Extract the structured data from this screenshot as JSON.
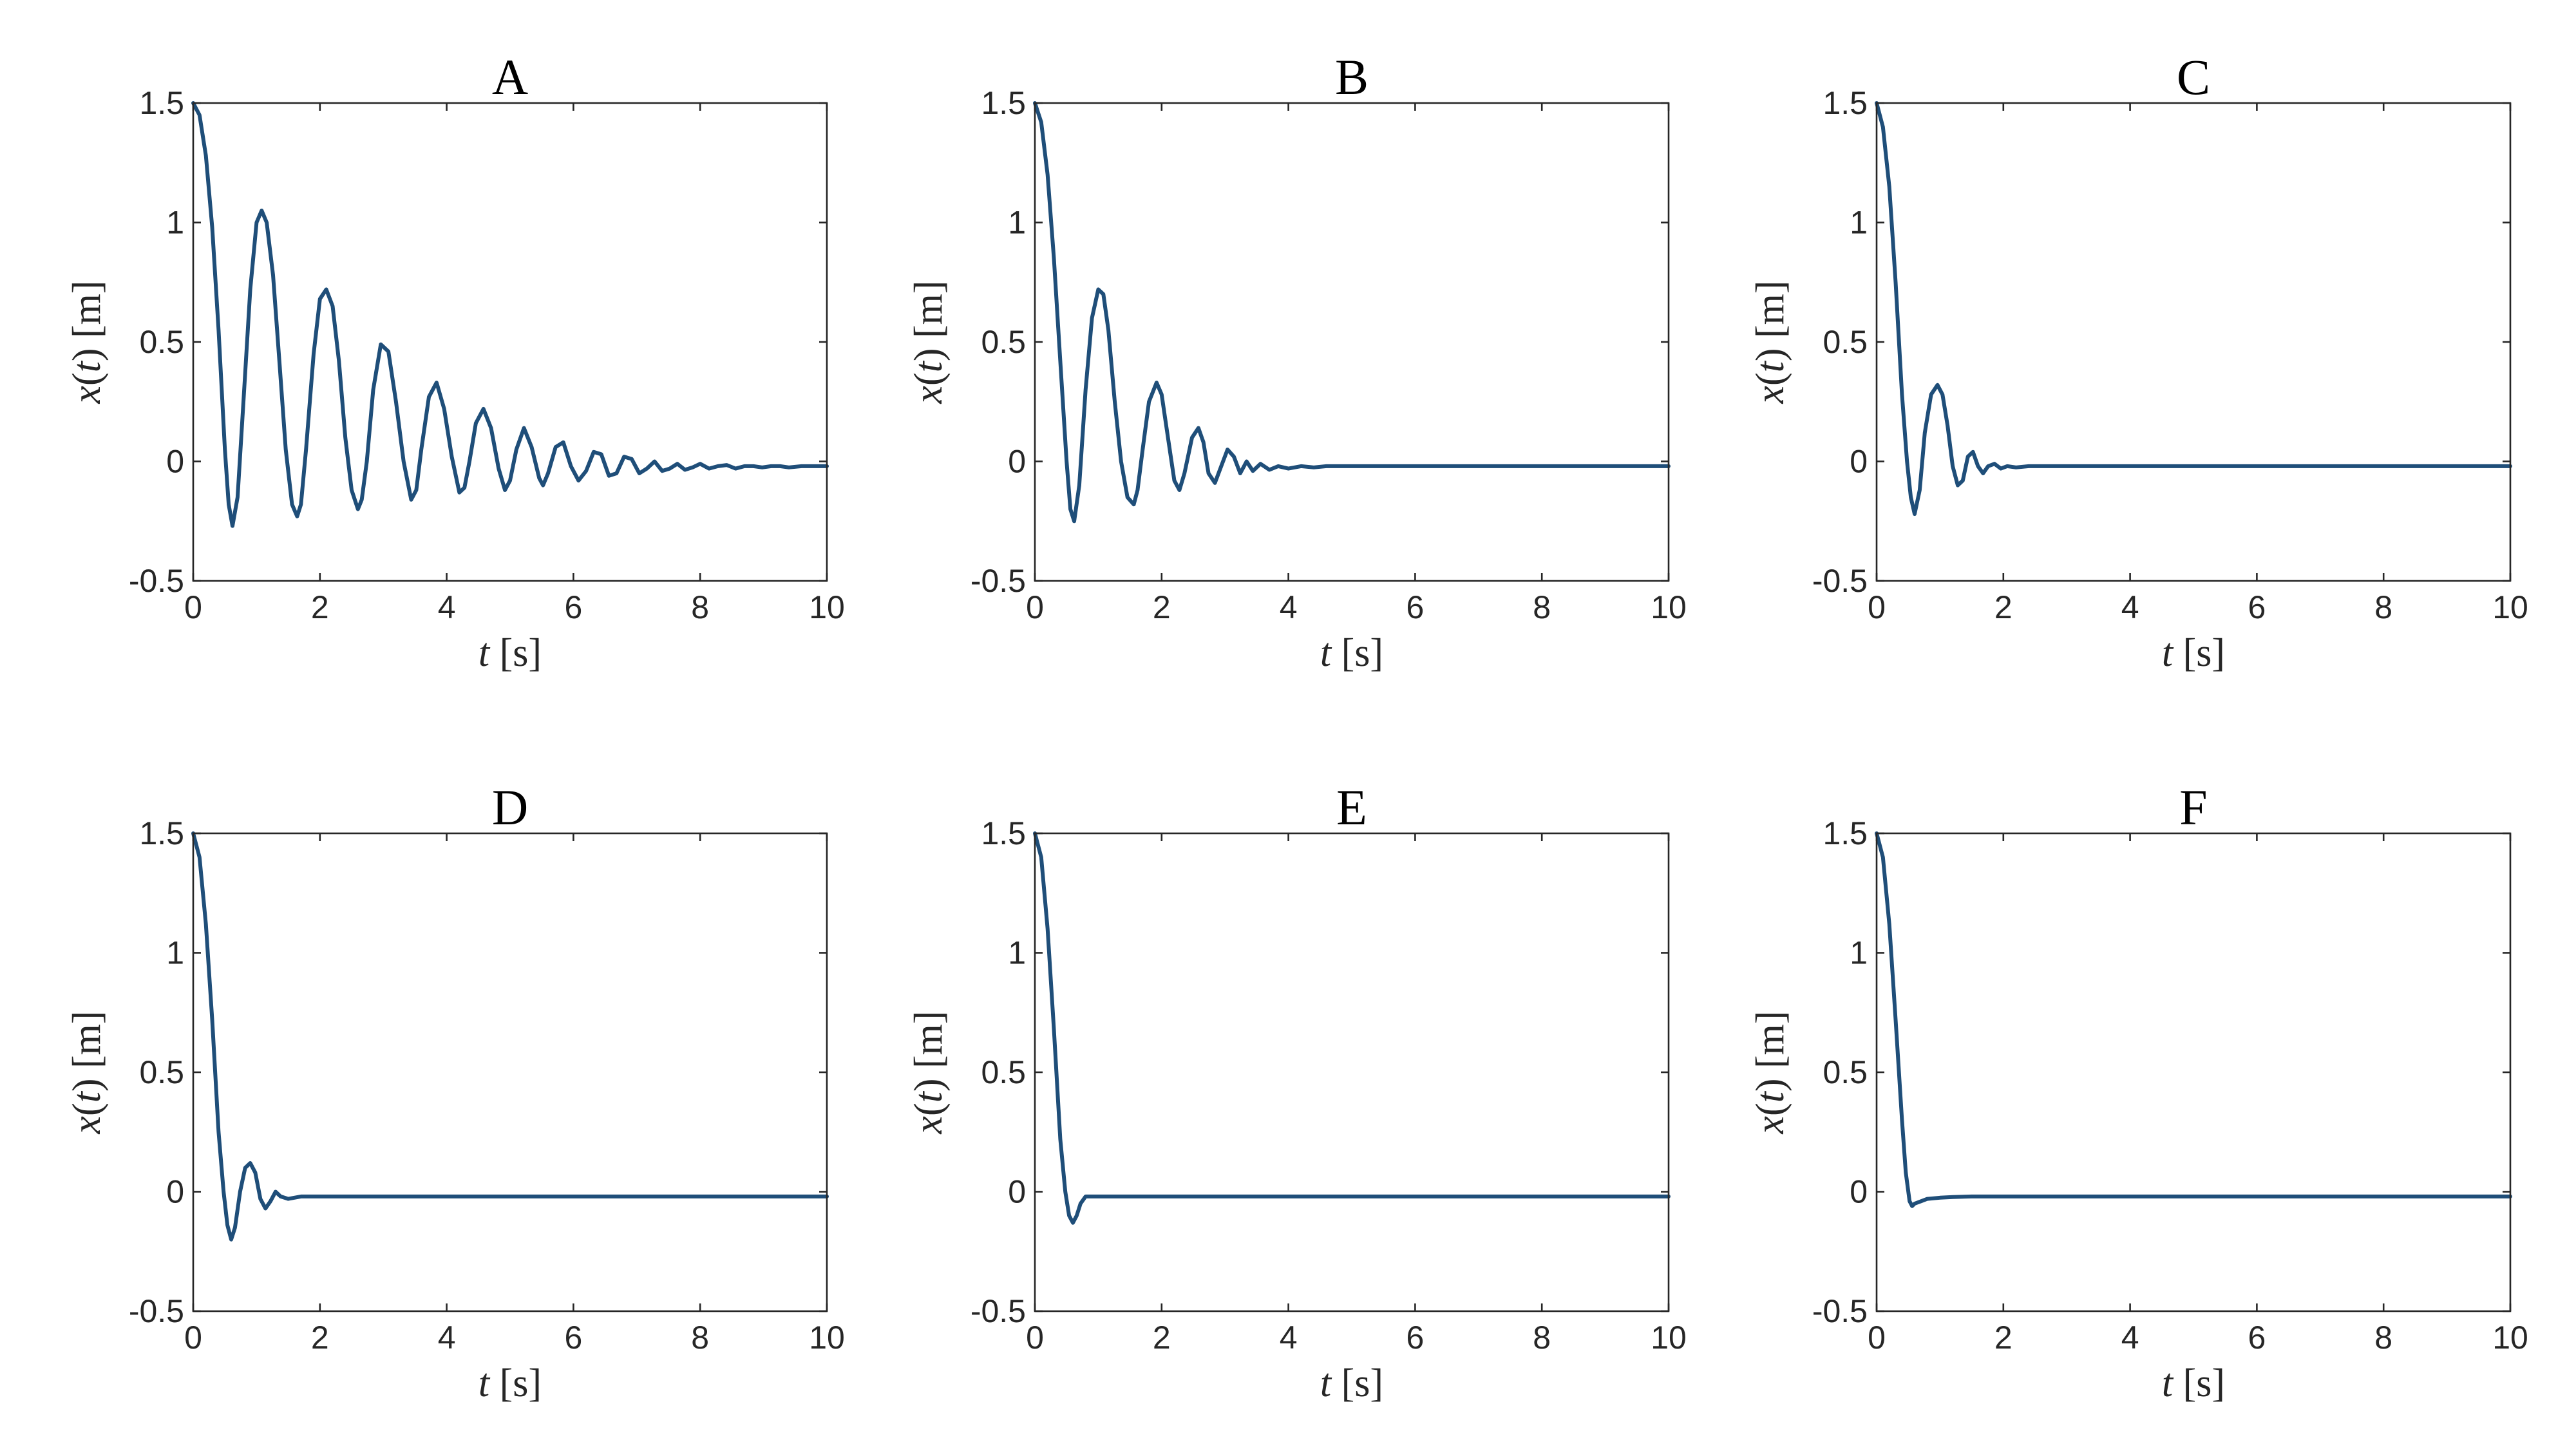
{
  "chart_data": [
    {
      "type": "line",
      "title": "A",
      "xlabel_var": "t",
      "xlabel_unit": "[s]",
      "ylabel_var": "x(t)",
      "ylabel_unit": "[m]",
      "xlim": [
        0,
        10
      ],
      "ylim": [
        -0.5,
        1.5
      ],
      "xticks": [
        "0",
        "2",
        "4",
        "6",
        "8",
        "10"
      ],
      "yticks": [
        "-0.5",
        "0",
        "0.5",
        "1",
        "1.5"
      ],
      "grid": false,
      "series": [
        {
          "color": "#1f4e79",
          "x": [
            0,
            0.1,
            0.2,
            0.3,
            0.4,
            0.5,
            0.56,
            0.62,
            0.7,
            0.8,
            0.9,
            1.0,
            1.08,
            1.16,
            1.26,
            1.36,
            1.46,
            1.56,
            1.64,
            1.7,
            1.78,
            1.9,
            2.0,
            2.1,
            2.2,
            2.3,
            2.4,
            2.5,
            2.6,
            2.66,
            2.74,
            2.84,
            2.96,
            3.08,
            3.2,
            3.32,
            3.44,
            3.52,
            3.6,
            3.72,
            3.84,
            3.96,
            4.08,
            4.2,
            4.28,
            4.36,
            4.46,
            4.58,
            4.7,
            4.82,
            4.92,
            5.0,
            5.1,
            5.22,
            5.34,
            5.46,
            5.52,
            5.6,
            5.72,
            5.84,
            5.96,
            6.08,
            6.2,
            6.32,
            6.44,
            6.56,
            6.68,
            6.8,
            6.92,
            7.04,
            7.16,
            7.28,
            7.4,
            7.52,
            7.64,
            7.76,
            7.88,
            8.0,
            8.14,
            8.28,
            8.42,
            8.56,
            8.7,
            8.84,
            8.98,
            9.12,
            9.26,
            9.4,
            9.6,
            9.8,
            10.0
          ],
          "y": [
            1.5,
            1.45,
            1.28,
            0.98,
            0.55,
            0.05,
            -0.18,
            -0.27,
            -0.15,
            0.28,
            0.72,
            1.0,
            1.05,
            1.0,
            0.78,
            0.42,
            0.05,
            -0.18,
            -0.23,
            -0.18,
            0.05,
            0.45,
            0.68,
            0.72,
            0.65,
            0.42,
            0.1,
            -0.12,
            -0.2,
            -0.16,
            0.0,
            0.3,
            0.49,
            0.46,
            0.25,
            0.0,
            -0.16,
            -0.12,
            0.05,
            0.27,
            0.33,
            0.22,
            0.02,
            -0.13,
            -0.11,
            0.0,
            0.16,
            0.22,
            0.14,
            -0.03,
            -0.12,
            -0.08,
            0.05,
            0.14,
            0.06,
            -0.07,
            -0.1,
            -0.05,
            0.06,
            0.08,
            -0.02,
            -0.08,
            -0.04,
            0.04,
            0.03,
            -0.06,
            -0.05,
            0.02,
            0.01,
            -0.05,
            -0.03,
            0.0,
            -0.04,
            -0.03,
            -0.01,
            -0.035,
            -0.025,
            -0.01,
            -0.03,
            -0.02,
            -0.015,
            -0.03,
            -0.02,
            -0.02,
            -0.025,
            -0.02,
            -0.02,
            -0.025,
            -0.02,
            -0.02,
            -0.02
          ]
        }
      ]
    },
    {
      "type": "line",
      "title": "B",
      "xlabel_var": "t",
      "xlabel_unit": "[s]",
      "ylabel_var": "x(t)",
      "ylabel_unit": "[m]",
      "xlim": [
        0,
        10
      ],
      "ylim": [
        -0.5,
        1.5
      ],
      "xticks": [
        "0",
        "2",
        "4",
        "6",
        "8",
        "10"
      ],
      "yticks": [
        "-0.5",
        "0",
        "0.5",
        "1",
        "1.5"
      ],
      "grid": false,
      "series": [
        {
          "color": "#1f4e79",
          "x": [
            0,
            0.1,
            0.2,
            0.3,
            0.4,
            0.5,
            0.56,
            0.62,
            0.7,
            0.8,
            0.9,
            1.0,
            1.08,
            1.16,
            1.26,
            1.36,
            1.46,
            1.56,
            1.62,
            1.7,
            1.8,
            1.92,
            2.0,
            2.1,
            2.2,
            2.28,
            2.36,
            2.48,
            2.58,
            2.66,
            2.74,
            2.84,
            2.94,
            3.04,
            3.14,
            3.24,
            3.34,
            3.44,
            3.56,
            3.7,
            3.84,
            4.0,
            4.2,
            4.4,
            4.6,
            5.0,
            6.0,
            7.0,
            8.0,
            9.0,
            10.0
          ],
          "y": [
            1.5,
            1.42,
            1.2,
            0.85,
            0.42,
            0.0,
            -0.2,
            -0.25,
            -0.1,
            0.3,
            0.6,
            0.72,
            0.7,
            0.55,
            0.25,
            0.0,
            -0.15,
            -0.18,
            -0.12,
            0.05,
            0.25,
            0.33,
            0.28,
            0.1,
            -0.08,
            -0.12,
            -0.05,
            0.1,
            0.14,
            0.08,
            -0.05,
            -0.09,
            -0.02,
            0.05,
            0.02,
            -0.05,
            0.0,
            -0.04,
            -0.01,
            -0.035,
            -0.02,
            -0.03,
            -0.02,
            -0.025,
            -0.02,
            -0.02,
            -0.02,
            -0.02,
            -0.02,
            -0.02,
            -0.02
          ]
        }
      ]
    },
    {
      "type": "line",
      "title": "C",
      "xlabel_var": "t",
      "xlabel_unit": "[s]",
      "ylabel_var": "x(t)",
      "ylabel_unit": "[m]",
      "xlim": [
        0,
        10
      ],
      "ylim": [
        -0.5,
        1.5
      ],
      "xticks": [
        "0",
        "2",
        "4",
        "6",
        "8",
        "10"
      ],
      "yticks": [
        "-0.5",
        "0",
        "0.5",
        "1",
        "1.5"
      ],
      "grid": false,
      "series": [
        {
          "color": "#1f4e79",
          "x": [
            0,
            0.1,
            0.2,
            0.3,
            0.4,
            0.48,
            0.54,
            0.6,
            0.68,
            0.76,
            0.86,
            0.96,
            1.04,
            1.12,
            1.2,
            1.28,
            1.36,
            1.44,
            1.52,
            1.6,
            1.68,
            1.76,
            1.86,
            1.96,
            2.06,
            2.2,
            2.4,
            2.6,
            3.0,
            4.0,
            6.0,
            8.0,
            10.0
          ],
          "y": [
            1.5,
            1.4,
            1.15,
            0.75,
            0.28,
            0.0,
            -0.15,
            -0.22,
            -0.12,
            0.12,
            0.28,
            0.32,
            0.28,
            0.15,
            -0.02,
            -0.1,
            -0.08,
            0.02,
            0.04,
            -0.02,
            -0.05,
            -0.02,
            -0.01,
            -0.03,
            -0.02,
            -0.025,
            -0.02,
            -0.02,
            -0.02,
            -0.02,
            -0.02,
            -0.02,
            -0.02
          ]
        }
      ]
    },
    {
      "type": "line",
      "title": "D",
      "xlabel_var": "t",
      "xlabel_unit": "[s]",
      "ylabel_var": "x(t)",
      "ylabel_unit": "[m]",
      "xlim": [
        0,
        10
      ],
      "ylim": [
        -0.5,
        1.5
      ],
      "xticks": [
        "0",
        "2",
        "4",
        "6",
        "8",
        "10"
      ],
      "yticks": [
        "-0.5",
        "0",
        "0.5",
        "1",
        "1.5"
      ],
      "grid": false,
      "series": [
        {
          "color": "#1f4e79",
          "x": [
            0,
            0.1,
            0.2,
            0.3,
            0.4,
            0.48,
            0.54,
            0.6,
            0.66,
            0.74,
            0.82,
            0.9,
            0.98,
            1.06,
            1.14,
            1.22,
            1.3,
            1.38,
            1.5,
            1.7,
            2.0,
            3.0,
            4.0,
            6.0,
            8.0,
            10.0
          ],
          "y": [
            1.5,
            1.4,
            1.12,
            0.72,
            0.25,
            0.0,
            -0.14,
            -0.2,
            -0.15,
            0.0,
            0.1,
            0.12,
            0.08,
            -0.03,
            -0.07,
            -0.04,
            0.0,
            -0.02,
            -0.03,
            -0.02,
            -0.02,
            -0.02,
            -0.02,
            -0.02,
            -0.02,
            -0.02
          ]
        }
      ]
    },
    {
      "type": "line",
      "title": "E",
      "xlabel_var": "t",
      "xlabel_unit": "[s]",
      "ylabel_var": "x(t)",
      "ylabel_unit": "[m]",
      "xlim": [
        0,
        10
      ],
      "ylim": [
        -0.5,
        1.5
      ],
      "xticks": [
        "0",
        "2",
        "4",
        "6",
        "8",
        "10"
      ],
      "yticks": [
        "-0.5",
        "0",
        "0.5",
        "1",
        "1.5"
      ],
      "grid": false,
      "series": [
        {
          "color": "#1f4e79",
          "x": [
            0,
            0.1,
            0.2,
            0.3,
            0.4,
            0.48,
            0.54,
            0.6,
            0.66,
            0.72,
            0.8,
            0.9,
            1.0,
            1.2,
            1.5,
            2.0,
            4.0,
            6.0,
            8.0,
            10.0
          ],
          "y": [
            1.5,
            1.4,
            1.1,
            0.68,
            0.22,
            0.0,
            -0.1,
            -0.13,
            -0.1,
            -0.05,
            -0.02,
            -0.02,
            -0.02,
            -0.02,
            -0.02,
            -0.02,
            -0.02,
            -0.02,
            -0.02,
            -0.02
          ]
        }
      ]
    },
    {
      "type": "line",
      "title": "F",
      "xlabel_var": "t",
      "xlabel_unit": "[s]",
      "ylabel_var": "x(t)",
      "ylabel_unit": "[m]",
      "xlim": [
        0,
        10
      ],
      "ylim": [
        -0.5,
        1.5
      ],
      "xticks": [
        "0",
        "2",
        "4",
        "6",
        "8",
        "10"
      ],
      "yticks": [
        "-0.5",
        "0",
        "0.5",
        "1",
        "1.5"
      ],
      "grid": false,
      "series": [
        {
          "color": "#1f4e79",
          "x": [
            0,
            0.1,
            0.2,
            0.3,
            0.4,
            0.46,
            0.52,
            0.56,
            0.6,
            0.7,
            0.8,
            1.0,
            1.2,
            1.5,
            2.0,
            3.0,
            4.0,
            6.0,
            8.0,
            10.0
          ],
          "y": [
            1.5,
            1.4,
            1.12,
            0.72,
            0.3,
            0.08,
            -0.04,
            -0.06,
            -0.05,
            -0.04,
            -0.03,
            -0.025,
            -0.022,
            -0.02,
            -0.02,
            -0.02,
            -0.02,
            -0.02,
            -0.02,
            -0.02
          ]
        }
      ]
    }
  ]
}
